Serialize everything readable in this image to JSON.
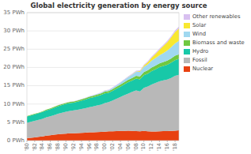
{
  "chart_data": {
    "type": "area",
    "stacked": true,
    "title": "Global electricity generation by energy source",
    "x": [
      1980,
      1981,
      1982,
      1983,
      1984,
      1985,
      1986,
      1987,
      1988,
      1989,
      1990,
      1991,
      1992,
      1993,
      1994,
      1995,
      1996,
      1997,
      1998,
      1999,
      2000,
      2001,
      2002,
      2003,
      2004,
      2005,
      2006,
      2007,
      2008,
      2009,
      2010,
      2011,
      2012,
      2013,
      2014,
      2015,
      2016,
      2017,
      2018,
      2019
    ],
    "series": [
      {
        "name": "Nuclear",
        "color": "#e84010",
        "values": [
          0.68,
          0.76,
          0.88,
          1.0,
          1.15,
          1.35,
          1.48,
          1.62,
          1.75,
          1.82,
          1.9,
          1.98,
          2.0,
          2.05,
          2.1,
          2.18,
          2.25,
          2.25,
          2.3,
          2.35,
          2.45,
          2.52,
          2.55,
          2.58,
          2.62,
          2.65,
          2.68,
          2.65,
          2.6,
          2.56,
          2.63,
          2.52,
          2.46,
          2.46,
          2.53,
          2.57,
          2.61,
          2.64,
          2.7,
          2.8
        ]
      },
      {
        "name": "Fossil",
        "color": "#b8b8b8",
        "values": [
          4.2,
          4.35,
          4.5,
          4.65,
          4.8,
          5.0,
          5.15,
          5.35,
          5.6,
          5.8,
          6.0,
          6.1,
          6.25,
          6.4,
          6.55,
          6.7,
          6.9,
          7.1,
          7.3,
          7.5,
          7.8,
          8.0,
          8.4,
          8.85,
          9.3,
          9.75,
          10.2,
          10.7,
          11.1,
          10.9,
          11.8,
          12.3,
          12.9,
          13.3,
          13.7,
          13.9,
          14.1,
          14.5,
          15.0,
          15.2
        ]
      },
      {
        "name": "Hydro",
        "color": "#18c8a8",
        "values": [
          1.72,
          1.76,
          1.8,
          1.84,
          1.88,
          1.93,
          1.97,
          2.02,
          2.07,
          2.1,
          2.14,
          2.19,
          2.1,
          2.2,
          2.28,
          2.35,
          2.45,
          2.5,
          2.55,
          2.6,
          2.68,
          2.55,
          2.65,
          2.75,
          2.85,
          2.99,
          3.1,
          3.05,
          3.24,
          3.3,
          3.45,
          3.5,
          3.65,
          3.75,
          3.85,
          3.95,
          4.05,
          4.2,
          4.3,
          4.35
        ]
      },
      {
        "name": "Biomass and waste",
        "color": "#70c840",
        "values": [
          0.12,
          0.13,
          0.14,
          0.15,
          0.17,
          0.18,
          0.2,
          0.22,
          0.25,
          0.27,
          0.28,
          0.3,
          0.32,
          0.34,
          0.36,
          0.38,
          0.4,
          0.42,
          0.44,
          0.46,
          0.48,
          0.5,
          0.52,
          0.54,
          0.58,
          0.62,
          0.66,
          0.7,
          0.75,
          0.78,
          0.85,
          0.9,
          0.95,
          1.0,
          1.05,
          1.08,
          1.1,
          1.15,
          1.2,
          1.25
        ]
      },
      {
        "name": "Wind",
        "color": "#a0d8f0",
        "values": [
          0.0,
          0.0,
          0.0,
          0.0,
          0.0,
          0.0,
          0.0,
          0.01,
          0.01,
          0.02,
          0.02,
          0.03,
          0.03,
          0.04,
          0.05,
          0.07,
          0.1,
          0.12,
          0.14,
          0.18,
          0.22,
          0.26,
          0.3,
          0.38,
          0.48,
          0.6,
          0.75,
          0.95,
          1.1,
          1.25,
          1.45,
          1.65,
          1.9,
          2.05,
          2.2,
          2.45,
          2.75,
          3.05,
          3.4,
          3.7
        ]
      },
      {
        "name": "Solar",
        "color": "#f8e830",
        "values": [
          0.0,
          0.0,
          0.0,
          0.0,
          0.0,
          0.0,
          0.0,
          0.0,
          0.0,
          0.0,
          0.0,
          0.0,
          0.0,
          0.0,
          0.0,
          0.0,
          0.0,
          0.0,
          0.0,
          0.0,
          0.01,
          0.01,
          0.01,
          0.02,
          0.02,
          0.03,
          0.04,
          0.06,
          0.12,
          0.2,
          0.32,
          0.55,
          0.85,
          1.15,
          1.5,
          1.9,
          2.3,
          2.7,
          3.1,
          3.4
        ]
      },
      {
        "name": "Other renewables",
        "color": "#d8c0f0",
        "values": [
          0.0,
          0.0,
          0.0,
          0.0,
          0.0,
          0.01,
          0.01,
          0.01,
          0.02,
          0.02,
          0.03,
          0.03,
          0.04,
          0.04,
          0.05,
          0.06,
          0.07,
          0.08,
          0.09,
          0.1,
          0.11,
          0.12,
          0.13,
          0.14,
          0.15,
          0.17,
          0.18,
          0.2,
          0.22,
          0.24,
          0.26,
          0.28,
          0.3,
          0.32,
          0.34,
          0.36,
          0.38,
          0.4,
          0.42,
          0.45
        ]
      }
    ],
    "xlim": [
      1980,
      2019
    ],
    "xticks": [
      {
        "value": 1980,
        "label": "'80"
      },
      {
        "value": 1982,
        "label": "'82"
      },
      {
        "value": 1984,
        "label": "'84"
      },
      {
        "value": 1986,
        "label": "'86"
      },
      {
        "value": 1988,
        "label": "'88"
      },
      {
        "value": 1990,
        "label": "'90"
      },
      {
        "value": 1992,
        "label": "'92"
      },
      {
        "value": 1994,
        "label": "'94"
      },
      {
        "value": 1996,
        "label": "'96"
      },
      {
        "value": 1998,
        "label": "'98"
      },
      {
        "value": 2000,
        "label": "'00"
      },
      {
        "value": 2002,
        "label": "'02"
      },
      {
        "value": 2004,
        "label": "'04"
      },
      {
        "value": 2006,
        "label": "'06"
      },
      {
        "value": 2008,
        "label": "'08"
      },
      {
        "value": 2010,
        "label": "'10"
      },
      {
        "value": 2012,
        "label": "'12"
      },
      {
        "value": 2014,
        "label": "'14"
      },
      {
        "value": 2016,
        "label": "'16"
      },
      {
        "value": 2018,
        "label": "'18"
      }
    ],
    "ylim": [
      0,
      35
    ],
    "yticks": [
      {
        "value": 0,
        "label": "0 PWh"
      },
      {
        "value": 5,
        "label": "5 PWh"
      },
      {
        "value": 10,
        "label": "10 PWh"
      },
      {
        "value": 15,
        "label": "15 PWh"
      },
      {
        "value": 20,
        "label": "20 PWh"
      },
      {
        "value": 25,
        "label": "25 PWh"
      },
      {
        "value": 30,
        "label": "30 PWh"
      },
      {
        "value": 35,
        "label": "35 PWh"
      }
    ],
    "grid": true,
    "legend": "right"
  }
}
